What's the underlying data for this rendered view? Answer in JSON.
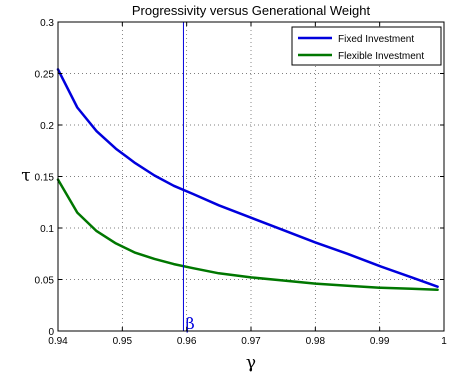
{
  "chart_data": {
    "type": "line",
    "title": "Progressivity versus Generational Weight",
    "xlabel": "γ",
    "ylabel": "τ",
    "xlim": [
      0.94,
      1.0
    ],
    "ylim": [
      0,
      0.3
    ],
    "xticks": [
      0.94,
      0.95,
      0.96,
      0.97,
      0.98,
      0.99,
      1.0
    ],
    "xtick_labels": [
      "0.94",
      "0.95",
      "0.96",
      "0.97",
      "0.98",
      "0.99",
      "1"
    ],
    "yticks": [
      0,
      0.05,
      0.1,
      0.15,
      0.2,
      0.25,
      0.3
    ],
    "ytick_labels": [
      "0",
      "0.05",
      "0.1",
      "0.15",
      "0.2",
      "0.25",
      "0.3"
    ],
    "grid": true,
    "legend_position": "top-right",
    "series": [
      {
        "name": "Fixed Investment",
        "color": "#0000dd",
        "x": [
          0.94,
          0.943,
          0.946,
          0.949,
          0.952,
          0.955,
          0.958,
          0.961,
          0.965,
          0.97,
          0.975,
          0.98,
          0.985,
          0.99,
          0.995,
          0.999
        ],
        "y": [
          0.254,
          0.217,
          0.194,
          0.177,
          0.163,
          0.151,
          0.141,
          0.133,
          0.122,
          0.11,
          0.098,
          0.086,
          0.075,
          0.063,
          0.052,
          0.043
        ]
      },
      {
        "name": "Flexible Investment",
        "color": "#007700",
        "x": [
          0.94,
          0.943,
          0.946,
          0.949,
          0.952,
          0.955,
          0.958,
          0.961,
          0.965,
          0.97,
          0.975,
          0.98,
          0.985,
          0.99,
          0.995,
          0.999
        ],
        "y": [
          0.147,
          0.115,
          0.097,
          0.085,
          0.076,
          0.07,
          0.065,
          0.061,
          0.056,
          0.052,
          0.049,
          0.046,
          0.044,
          0.042,
          0.041,
          0.04
        ]
      }
    ],
    "vline": {
      "x": 0.9595,
      "label": "β",
      "color": "#0000dd"
    }
  }
}
